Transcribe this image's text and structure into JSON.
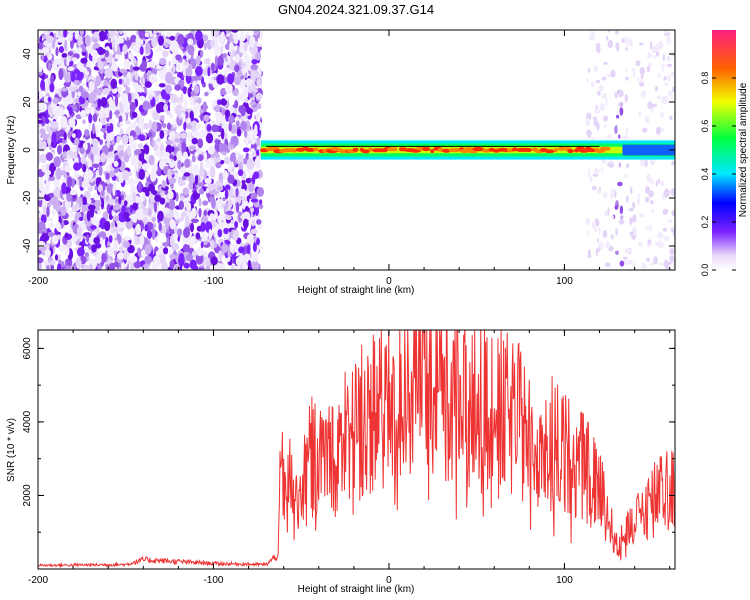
{
  "title": "GN04.2024.321.09.37.G14",
  "chart_data": [
    {
      "type": "heatmap",
      "xlabel": "Height of straight line (km)",
      "ylabel": "Frequency (Hz)",
      "xlim": [
        -200,
        163
      ],
      "ylim": [
        -50,
        50
      ],
      "xticks": [
        -200,
        -100,
        0,
        100
      ],
      "yticks": [
        -40,
        -20,
        0,
        20,
        40
      ],
      "colorbar": {
        "label": "Normalized spectral amplitude",
        "range": [
          0,
          1
        ],
        "ticks": [
          "0.0",
          "0.2",
          "0.4",
          "0.6",
          "0.8"
        ]
      },
      "regions": [
        {
          "name": "noise",
          "x": [
            -200,
            -73
          ],
          "y": [
            -50,
            50
          ]
        },
        {
          "name": "signal",
          "x": [
            -73,
            163
          ],
          "y_center": 0,
          "half_width_hz": 2.5
        },
        {
          "name": "noise-stripe",
          "x": [
            128,
            133
          ],
          "y": [
            -50,
            50
          ]
        }
      ]
    },
    {
      "type": "line",
      "xlabel": "Height of straight line (km)",
      "ylabel": "SNR (10 * v/v)",
      "xlim": [
        -200,
        163
      ],
      "ylim": [
        0,
        6500
      ],
      "xticks": [
        -200,
        -100,
        0,
        100
      ],
      "yticks": [
        2000,
        4000,
        6000
      ],
      "color": "#ee3333",
      "envelope": {
        "x": [
          -200,
          -150,
          -140,
          -100,
          -70,
          -63,
          -62,
          -50,
          -30,
          -20,
          -10,
          0,
          10,
          20,
          30,
          50,
          70,
          90,
          110,
          120,
          130,
          140,
          150,
          163
        ],
        "y": [
          100,
          120,
          250,
          150,
          120,
          400,
          2400,
          2900,
          3400,
          4000,
          4400,
          4800,
          5100,
          5600,
          5300,
          4600,
          4100,
          3500,
          2800,
          2200,
          600,
          1300,
          1900,
          2200
        ]
      }
    }
  ]
}
